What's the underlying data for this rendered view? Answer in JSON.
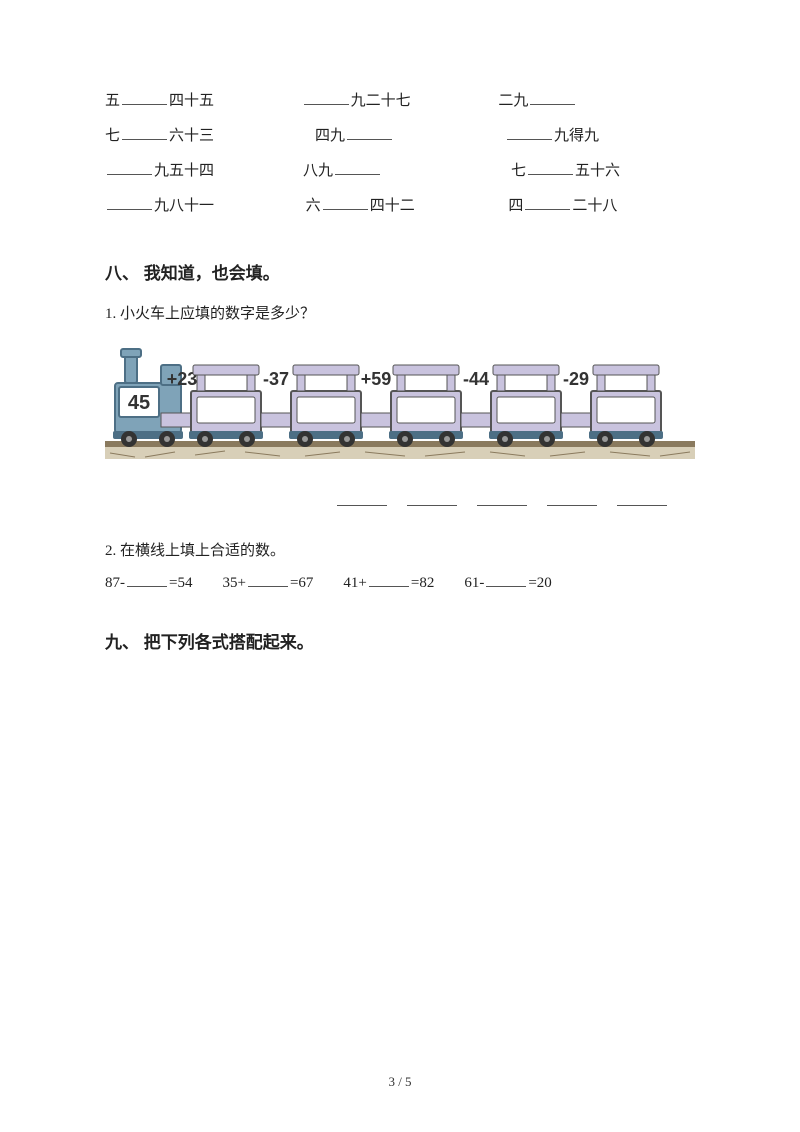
{
  "fill": {
    "rows": [
      {
        "c1a": "五",
        "c1b": "四十五",
        "c2a": "",
        "c2b": "九二十七",
        "c3a": "二九",
        "c3b": ""
      },
      {
        "c1a": "七",
        "c1b": "六十三",
        "c2a": "四九",
        "c2b": "",
        "c3a": "",
        "c3b": "九得九"
      },
      {
        "c1a": "",
        "c1b": "九五十四",
        "c2a": "八九",
        "c2b": "",
        "c3a": "七",
        "c3b": "五十六"
      },
      {
        "c1a": "",
        "c1b": "九八十一",
        "c2a": "六",
        "c2b": "四十二",
        "c3a": "四",
        "c3b": "二十八"
      }
    ]
  },
  "sec8": {
    "title": "八、 我知道，也会填。",
    "q1": "1. 小火车上应填的数字是多少？",
    "q2": "2. 在横线上填上合适的数。",
    "train": {
      "start": "45",
      "ops": [
        "+23",
        "-37",
        "+59",
        "-44",
        "-29"
      ],
      "engine_color": "#7fa3b8",
      "engine_dark": "#4d6f85",
      "car_color": "#c9c3de",
      "car_border": "#555",
      "wheel_color": "#333",
      "ground_color": "#8a7a5e",
      "bg": "#ffffff"
    },
    "eqs": [
      {
        "lhs": "87-",
        "rhs": "=54"
      },
      {
        "lhs": "35+",
        "rhs": "=67"
      },
      {
        "lhs": "41+",
        "rhs": "=82"
      },
      {
        "lhs": "61-",
        "rhs": "=20"
      }
    ]
  },
  "sec9": {
    "title": "九、 把下列各式搭配起来。"
  },
  "footer": "3 / 5"
}
